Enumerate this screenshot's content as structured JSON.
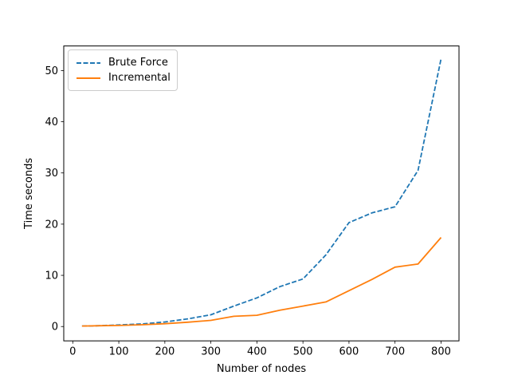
{
  "figure": {
    "background": "#ffffff",
    "frame_color": "#000000"
  },
  "chart_data": {
    "type": "line",
    "title": "",
    "xlabel": "Number of nodes",
    "ylabel": "Time seconds",
    "x": [
      20,
      50,
      100,
      150,
      200,
      250,
      300,
      350,
      400,
      450,
      500,
      550,
      600,
      650,
      700,
      750,
      800
    ],
    "series": [
      {
        "name": "Brute Force",
        "color": "#1f77b4",
        "style": "dashed",
        "values": [
          0.1,
          0.15,
          0.3,
          0.5,
          0.9,
          1.5,
          2.3,
          4.0,
          5.6,
          7.8,
          9.3,
          14.0,
          20.3,
          22.2,
          23.4,
          30.5,
          52.3
        ]
      },
      {
        "name": "Incremental",
        "color": "#ff7f0e",
        "style": "solid",
        "values": [
          0.1,
          0.15,
          0.2,
          0.35,
          0.55,
          0.85,
          1.2,
          2.0,
          2.2,
          3.2,
          4.0,
          4.8,
          7.0,
          9.2,
          11.6,
          12.2,
          17.4
        ]
      }
    ],
    "xticks": [
      0,
      100,
      200,
      300,
      400,
      500,
      600,
      700,
      800
    ],
    "yticks": [
      0,
      10,
      20,
      30,
      40,
      50
    ],
    "xlim": [
      -19.6,
      839.0
    ],
    "ylim": [
      -2.8,
      54.8
    ],
    "grid": false,
    "legend_position": "upper-left"
  }
}
